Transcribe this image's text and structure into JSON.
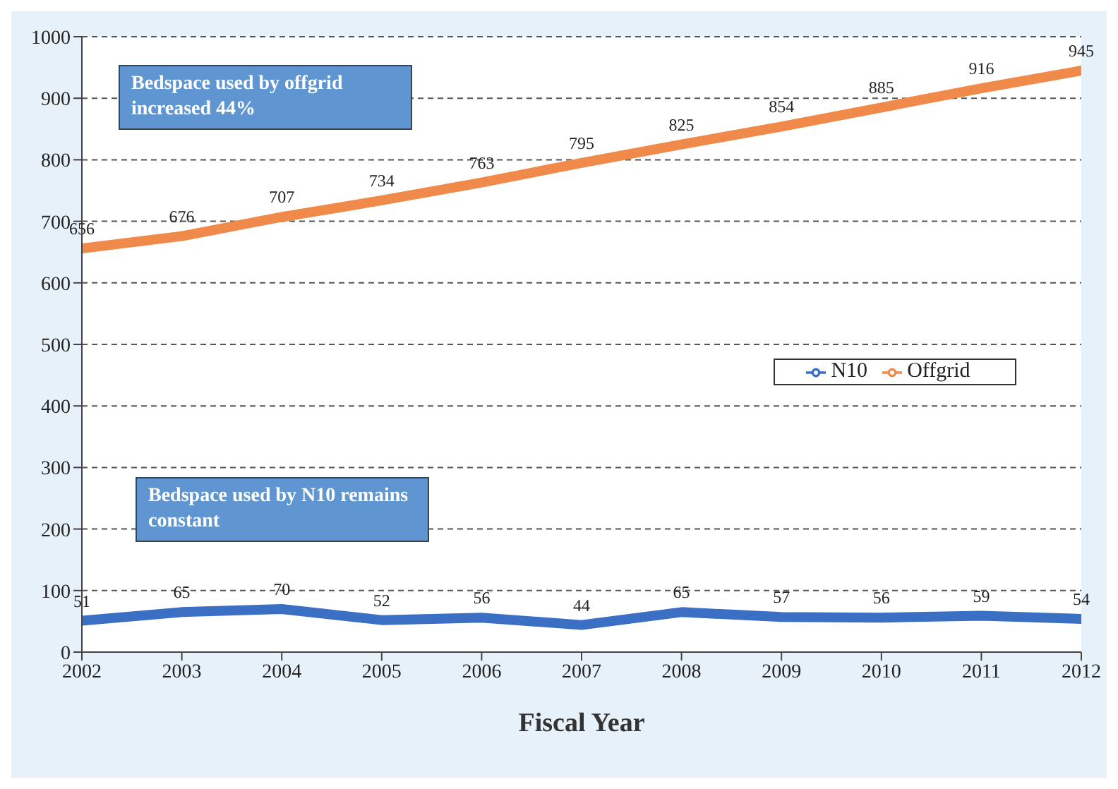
{
  "chart_data": {
    "type": "line",
    "xlabel": "Fiscal Year",
    "x": [
      2002,
      2003,
      2004,
      2005,
      2006,
      2007,
      2008,
      2009,
      2010,
      2011,
      2012
    ],
    "series": [
      {
        "name": "N10",
        "color": "#3a6fc4",
        "values": [
          51,
          65,
          70,
          52,
          56,
          44,
          65,
          57,
          56,
          59,
          54
        ]
      },
      {
        "name": "Offgrid",
        "color": "#f08a4b",
        "values": [
          656,
          676,
          707,
          734,
          763,
          795,
          825,
          854,
          885,
          916,
          945
        ]
      }
    ],
    "xlim": [
      2002,
      2012
    ],
    "xticks": [
      2002,
      2003,
      2004,
      2005,
      2006,
      2007,
      2008,
      2009,
      2010,
      2011,
      2012
    ],
    "ylim": [
      0,
      1000
    ],
    "yticks": [
      0,
      100,
      200,
      300,
      400,
      500,
      600,
      700,
      800,
      900,
      1000
    ],
    "grid": "y",
    "legend": "right",
    "marker": "none",
    "line_style": "solid",
    "data_labels": true,
    "annotations": [
      "Bedspace used by offgrid increased 44%",
      "Bedspace used by N10 remains constant"
    ]
  }
}
